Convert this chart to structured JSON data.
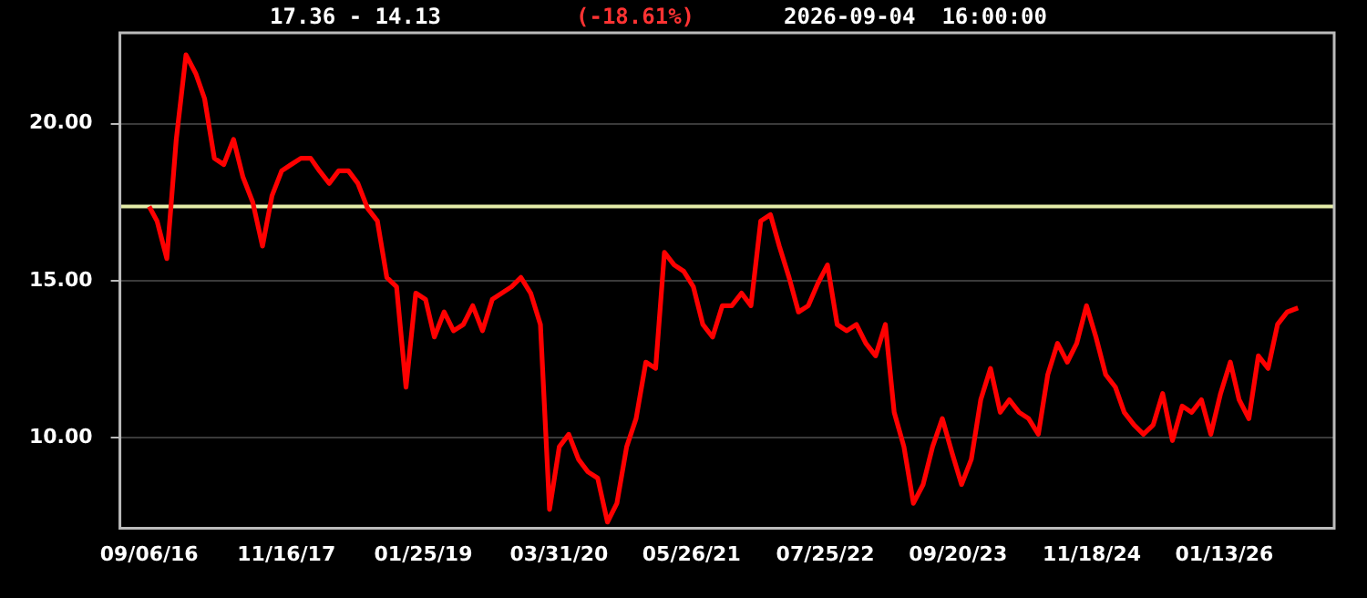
{
  "chart_data": {
    "type": "line",
    "title": "17.36 - 14.13",
    "subtitle": "(-18.61%)",
    "annotations": [
      "2026-09-04  16:00:00"
    ],
    "x": [
      "2016-09-06",
      "2016-10",
      "2016-11",
      "2016-12",
      "2017-01",
      "2017-02",
      "2017-03",
      "2017-04",
      "2017-05",
      "2017-06",
      "2017-07",
      "2017-08",
      "2017-09",
      "2017-10",
      "2017-11",
      "2017-12",
      "2018-01",
      "2018-02",
      "2018-03",
      "2018-04",
      "2018-05",
      "2018-06",
      "2018-07",
      "2018-08",
      "2018-09",
      "2018-10",
      "2018-11",
      "2018-12",
      "2019-01",
      "2019-02",
      "2019-03",
      "2019-04",
      "2019-05",
      "2019-06",
      "2019-07",
      "2019-08",
      "2019-09",
      "2019-10",
      "2019-11",
      "2019-12",
      "2020-01",
      "2020-02",
      "2020-03",
      "2020-04",
      "2020-05",
      "2020-06",
      "2020-07",
      "2020-08",
      "2020-09",
      "2020-10",
      "2020-11",
      "2020-12",
      "2021-01",
      "2021-02",
      "2021-03",
      "2021-04",
      "2021-05",
      "2021-06",
      "2021-07",
      "2021-08",
      "2021-09",
      "2021-10",
      "2021-11",
      "2021-12",
      "2022-01",
      "2022-02",
      "2022-03",
      "2022-04",
      "2022-05",
      "2022-06",
      "2022-07",
      "2022-08",
      "2022-09",
      "2022-10",
      "2022-11",
      "2022-12",
      "2023-01",
      "2023-02",
      "2023-03",
      "2023-04",
      "2023-05",
      "2023-06",
      "2023-07",
      "2023-08",
      "2023-09",
      "2023-10",
      "2023-11",
      "2023-12",
      "2024-01",
      "2024-02",
      "2024-03",
      "2024-04",
      "2024-05",
      "2024-06",
      "2024-07",
      "2024-08",
      "2024-09",
      "2024-10",
      "2024-11",
      "2024-12",
      "2025-01",
      "2025-02",
      "2025-03",
      "2025-04",
      "2025-05",
      "2025-06",
      "2025-07",
      "2025-08",
      "2025-09",
      "2025-10",
      "2025-11",
      "2025-12",
      "2026-01",
      "2026-02",
      "2026-03",
      "2026-04",
      "2026-05",
      "2026-06",
      "2026-07",
      "2026-08",
      "2026-09-04"
    ],
    "series": [
      {
        "color": "#ff0000",
        "values": [
          17.36,
          16.9,
          15.7,
          19.5,
          22.2,
          21.6,
          20.8,
          18.9,
          18.7,
          19.5,
          18.3,
          17.5,
          16.1,
          17.7,
          18.5,
          18.7,
          18.9,
          18.9,
          18.5,
          18.1,
          18.5,
          18.5,
          18.1,
          17.3,
          16.9,
          15.1,
          14.8,
          11.6,
          14.6,
          14.4,
          13.2,
          14.0,
          13.4,
          13.6,
          14.2,
          13.4,
          14.4,
          14.6,
          14.8,
          15.1,
          14.6,
          13.6,
          7.7,
          9.7,
          10.1,
          9.3,
          8.9,
          8.7,
          7.3,
          7.9,
          9.7,
          10.6,
          12.4,
          12.2,
          15.9,
          15.5,
          15.3,
          14.8,
          13.6,
          13.2,
          14.2,
          14.2,
          14.6,
          14.2,
          16.9,
          17.1,
          16.1,
          15.1,
          14.0,
          14.2,
          14.9,
          15.5,
          13.6,
          13.4,
          13.6,
          13.0,
          12.6,
          13.6,
          10.8,
          9.7,
          7.9,
          8.5,
          9.7,
          10.6,
          9.5,
          8.5,
          9.3,
          11.2,
          12.2,
          10.8,
          11.2,
          10.8,
          10.6,
          10.1,
          12.0,
          13.0,
          12.4,
          13.0,
          14.2,
          13.2,
          12.0,
          11.6,
          10.8,
          10.4,
          10.1,
          10.4,
          11.4,
          9.9,
          11.0,
          10.8,
          11.2,
          10.1,
          11.4,
          12.4,
          11.2,
          10.6,
          12.6,
          12.2,
          13.6,
          14.0,
          14.13
        ]
      }
    ],
    "xlim": [
      "2016-06-05",
      "2026-12-28"
    ],
    "xticks": [
      {
        "value": "2016-09-06",
        "label": "09/06/16"
      },
      {
        "value": "2017-11-16",
        "label": "11/16/17"
      },
      {
        "value": "2019-01-25",
        "label": "01/25/19"
      },
      {
        "value": "2020-03-31",
        "label": "03/31/20"
      },
      {
        "value": "2021-05-26",
        "label": "05/26/21"
      },
      {
        "value": "2022-07-25",
        "label": "07/25/22"
      },
      {
        "value": "2023-09-20",
        "label": "09/20/23"
      },
      {
        "value": "2024-11-18",
        "label": "11/18/24"
      },
      {
        "value": "2026-01-13",
        "label": "01/13/26"
      }
    ],
    "ylim": [
      7.1,
      22.9
    ],
    "yticks": [
      {
        "value": 10,
        "label": "10.00"
      },
      {
        "value": 15,
        "label": "15.00"
      },
      {
        "value": 20,
        "label": "20.00"
      }
    ],
    "ref_lines": [
      {
        "axis": "y",
        "value": 17.36,
        "color": "#e4eca8"
      }
    ],
    "grid": "y",
    "legend": false,
    "marker": "none",
    "line_style": "solid"
  }
}
